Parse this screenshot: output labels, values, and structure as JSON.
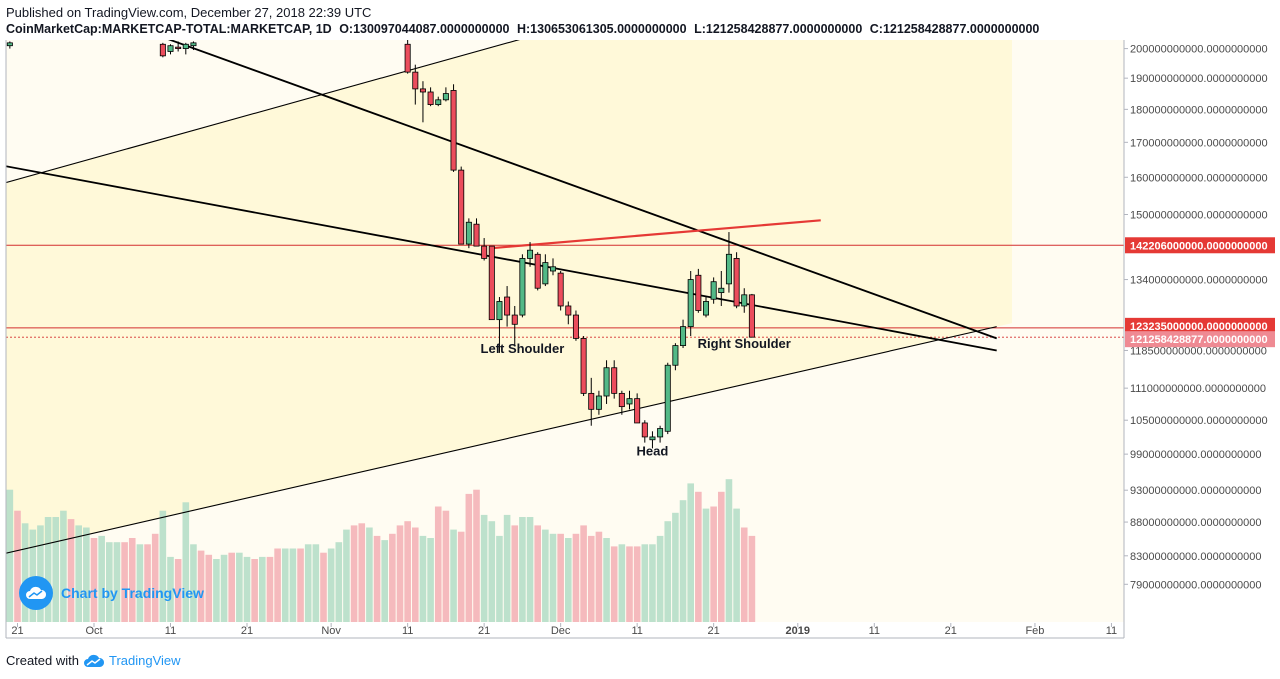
{
  "header": {
    "published": "Published on TradingView.com, December 27, 2018 22:39 UTC",
    "symbol": "CoinMarketCap:MARKETCAP-TOTAL:MARKETCAP, 1D",
    "open": "O:130097044087.0000000000",
    "high": "H:130653061305.0000000000",
    "low": "L:121258428877.0000000000",
    "close": "C:121258428877.0000000000"
  },
  "footer": {
    "created_with": "Created with",
    "brand": "TradingView",
    "watermark": "Chart by TradingView"
  },
  "colors": {
    "up": "#53b987",
    "down": "#eb4d5c",
    "vol_up": "#b9dfc9",
    "vol_down": "#f4b6b9",
    "band_fill": "#fff9d9",
    "outside_fill": "#fffcf2",
    "level": "#d32f2f",
    "trend": "#000000",
    "neckline": "#e53935",
    "brand": "#2196f3"
  },
  "chart_data": {
    "type": "candlestick",
    "title": "CoinMarketCap:MARKETCAP-TOTAL:MARKETCAP, 1D",
    "x_tick_labels": [
      "21",
      "Oct",
      "11",
      "21",
      "Nov",
      "11",
      "21",
      "Dec",
      "11",
      "21",
      "2019",
      "11",
      "21",
      "Feb",
      "11"
    ],
    "x_tick_days": [
      -10,
      0,
      10,
      20,
      31,
      41,
      51,
      61,
      71,
      81,
      92,
      102,
      112,
      123,
      133
    ],
    "y_tick_labels": [
      "200000000000.0000000000",
      "190000000000.0000000000",
      "180000000000.0000000000",
      "170000000000.0000000000",
      "160000000000.0000000000",
      "150000000000.0000000000",
      "134000000000.0000000000",
      "118500000000.0000000000",
      "111000000000.0000000000",
      "105000000000.0000000000",
      "99000000000.0000000000",
      "93000000000.0000000000",
      "88000000000.0000000000",
      "83000000000.0000000000",
      "79000000000.0000000000"
    ],
    "y_scale": "log",
    "y_range": [
      74000000000,
      203000000000
    ],
    "price_labels": [
      {
        "text": "142206000000.0000000000",
        "value": 142206000000
      },
      {
        "text": "123235000000.0000000000",
        "value": 123235000000
      },
      {
        "text": "121258428877.0000000000",
        "value": 121258428877
      }
    ],
    "annotations": [
      {
        "text": "Left Shoulder",
        "day": 56,
        "value": 118000000000
      },
      {
        "text": "Right Shoulder",
        "day": 85,
        "value": 119000000000
      },
      {
        "text": "Head",
        "day": 73,
        "value": 98800000000
      }
    ],
    "candles": [
      [
        -11,
        201000,
        202500,
        200000,
        202000
      ],
      [
        9,
        201500,
        202000,
        197000,
        197500
      ],
      [
        10,
        199000,
        201500,
        198000,
        201000
      ],
      [
        11,
        200500,
        202500,
        199000,
        200000
      ],
      [
        12,
        200000,
        202000,
        198000,
        201500
      ],
      [
        13,
        201000,
        202500,
        199500,
        202000
      ],
      [
        41,
        201500,
        203000,
        191500,
        192000
      ],
      [
        42,
        192000,
        194500,
        181500,
        186500
      ],
      [
        43,
        186500,
        189000,
        176000,
        185500
      ],
      [
        44,
        185500,
        187000,
        181000,
        181500
      ],
      [
        45,
        181500,
        184000,
        181000,
        183000
      ],
      [
        46,
        183000,
        187000,
        182500,
        185000
      ],
      [
        47,
        186000,
        188000,
        161500,
        162000
      ],
      [
        48,
        162000,
        163000,
        142500,
        142500
      ],
      [
        49,
        142500,
        149000,
        141500,
        148000
      ],
      [
        50,
        147500,
        149000,
        142000,
        142000
      ],
      [
        51,
        142000,
        144000,
        138500,
        139000
      ],
      [
        52,
        142000,
        142000,
        125000,
        125000
      ],
      [
        53,
        125000,
        130000,
        118000,
        129000
      ],
      [
        54,
        130000,
        132500,
        123500,
        126000
      ],
      [
        55,
        126000,
        128000,
        119500,
        124000
      ],
      [
        56,
        126000,
        140000,
        125500,
        139000
      ],
      [
        57,
        139000,
        143000,
        137000,
        141000
      ],
      [
        58,
        140000,
        140500,
        131500,
        132000
      ],
      [
        59,
        133000,
        140000,
        132500,
        138000
      ],
      [
        60,
        136000,
        139000,
        135000,
        137000
      ],
      [
        61,
        135500,
        136000,
        127000,
        128000
      ],
      [
        62,
        128000,
        129000,
        124000,
        126000
      ],
      [
        63,
        126000,
        127000,
        120500,
        121000
      ],
      [
        64,
        121000,
        121500,
        109500,
        110000
      ],
      [
        65,
        110000,
        113000,
        104000,
        107000
      ],
      [
        66,
        107000,
        110500,
        106000,
        109500
      ],
      [
        67,
        109500,
        116500,
        108000,
        115000
      ],
      [
        68,
        115000,
        116500,
        109000,
        110000
      ],
      [
        69,
        110000,
        110500,
        106000,
        107500
      ],
      [
        70,
        108000,
        110500,
        107000,
        109000
      ],
      [
        71,
        109000,
        110000,
        104500,
        104500
      ],
      [
        72,
        104500,
        105000,
        101000,
        102000
      ],
      [
        73,
        101500,
        103000,
        100000,
        102000
      ],
      [
        74,
        102000,
        104000,
        101000,
        103500
      ],
      [
        75,
        103000,
        116000,
        102500,
        115500
      ],
      [
        76,
        115500,
        120000,
        114500,
        119500
      ],
      [
        77,
        119500,
        125000,
        119000,
        123500
      ],
      [
        78,
        123500,
        136000,
        121500,
        134000
      ],
      [
        79,
        135000,
        136500,
        126500,
        127000
      ],
      [
        80,
        126000,
        130000,
        125500,
        129000
      ],
      [
        81,
        129500,
        134500,
        128500,
        133500
      ],
      [
        82,
        131000,
        136000,
        128000,
        132000
      ],
      [
        83,
        133000,
        145500,
        131000,
        140000
      ],
      [
        84,
        139000,
        140500,
        127500,
        128000
      ],
      [
        85,
        128000,
        132000,
        126500,
        130500
      ],
      [
        86,
        130500,
        130700,
        121258,
        121258
      ]
    ],
    "volume_days": [
      -12,
      -11,
      -10,
      -9,
      -8,
      -7,
      -6,
      -5,
      -4,
      -3,
      -2,
      -1,
      0,
      1,
      2,
      3,
      4,
      5,
      6,
      7,
      8,
      9,
      10,
      11,
      12,
      13,
      14,
      15,
      16,
      17,
      18,
      19,
      20,
      21,
      22,
      23,
      24,
      25,
      26,
      27,
      28,
      29,
      30,
      31,
      32,
      33,
      34,
      35,
      36,
      37,
      38,
      39,
      40,
      41,
      42,
      43,
      44,
      45,
      46,
      47,
      48,
      49,
      50,
      51,
      52,
      53,
      54,
      55,
      56,
      57,
      58,
      59,
      60,
      61,
      62,
      63,
      64,
      65,
      66,
      67,
      68,
      69,
      70,
      71,
      72,
      73,
      74,
      75,
      76,
      77,
      78,
      79,
      80,
      81,
      82,
      83,
      84,
      85,
      86
    ],
    "volume_values": [
      0.45,
      0.63,
      0.53,
      0.47,
      0.44,
      0.46,
      0.5,
      0.5,
      0.53,
      0.49,
      0.46,
      0.45,
      0.4,
      0.41,
      0.38,
      0.38,
      0.38,
      0.4,
      0.37,
      0.37,
      0.42,
      0.53,
      0.31,
      0.3,
      0.57,
      0.37,
      0.34,
      0.32,
      0.3,
      0.32,
      0.33,
      0.33,
      0.31,
      0.3,
      0.31,
      0.31,
      0.35,
      0.35,
      0.35,
      0.35,
      0.37,
      0.37,
      0.33,
      0.35,
      0.38,
      0.44,
      0.46,
      0.47,
      0.45,
      0.41,
      0.39,
      0.42,
      0.46,
      0.48,
      0.45,
      0.41,
      0.4,
      0.55,
      0.53,
      0.44,
      0.43,
      0.61,
      0.63,
      0.51,
      0.48,
      0.41,
      0.51,
      0.46,
      0.5,
      0.5,
      0.46,
      0.44,
      0.42,
      0.42,
      0.4,
      0.42,
      0.46,
      0.41,
      0.43,
      0.4,
      0.36,
      0.37,
      0.36,
      0.36,
      0.37,
      0.37,
      0.41,
      0.48,
      0.52,
      0.58,
      0.66,
      0.62,
      0.54,
      0.55,
      0.62,
      0.68,
      0.54,
      0.45,
      0.41
    ],
    "volume_up": [
      1,
      1,
      0,
      1,
      1,
      1,
      1,
      1,
      1,
      0,
      1,
      1,
      0,
      1,
      1,
      1,
      0,
      0,
      1,
      0,
      0,
      1,
      1,
      0,
      1,
      1,
      0,
      0,
      1,
      1,
      0,
      1,
      1,
      0,
      1,
      0,
      0,
      1,
      1,
      0,
      1,
      1,
      0,
      1,
      1,
      1,
      0,
      0,
      1,
      0,
      1,
      0,
      0,
      0,
      0,
      1,
      1,
      0,
      0,
      1,
      0,
      0,
      0,
      1,
      1,
      1,
      1,
      0,
      1,
      1,
      0,
      1,
      1,
      0,
      1,
      0,
      0,
      0,
      0,
      1,
      0,
      1,
      0,
      0,
      1,
      1,
      1,
      1,
      1,
      1,
      1,
      0,
      1,
      0,
      0,
      1,
      1,
      0,
      0
    ],
    "lines": [
      {
        "name": "upper-channel",
        "from": [
          -15,
          156500
        ],
        "to": [
          62,
          208000
        ]
      },
      {
        "name": "lower-channel",
        "from": [
          -15,
          82500
        ],
        "to": [
          118,
          123500
        ]
      },
      {
        "name": "mid-trend",
        "from": [
          -15,
          164500
        ],
        "to": [
          118,
          118500
        ]
      },
      {
        "name": "upper-trend",
        "from": [
          -1,
          214000
        ],
        "to": [
          118,
          121000
        ]
      },
      {
        "name": "neckline",
        "from": [
          52,
          141500
        ],
        "to": [
          95,
          148500
        ]
      }
    ],
    "levels": [
      142206000000,
      123235000000,
      121258428877
    ]
  }
}
